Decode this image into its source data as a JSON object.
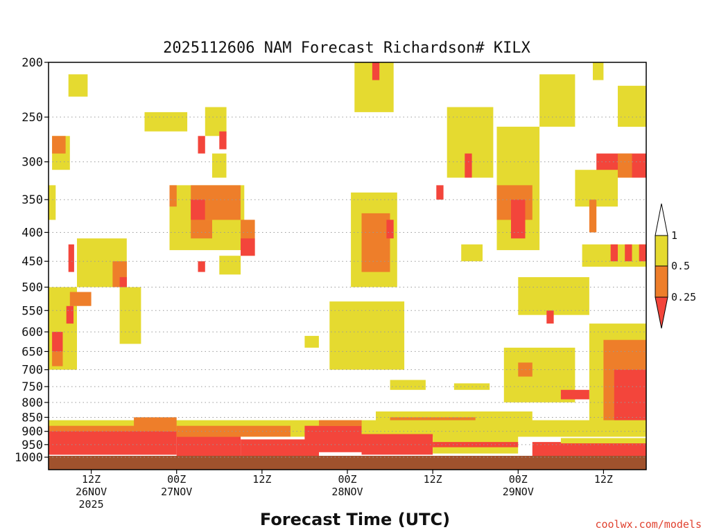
{
  "chart_data": {
    "type": "heatmap",
    "title": "2025112606 NAM Forecast Richardson# KILX",
    "xlabel": "Forecast Time (UTC)",
    "ylabel": "",
    "x_unit": "forecast hour from 2025-11-26 06Z",
    "xlim": [
      0,
      84
    ],
    "ylim": [
      1000,
      200
    ],
    "y_scale": "log-pressure (hPa)",
    "grid": true,
    "y_ticks": [
      200,
      250,
      300,
      350,
      400,
      450,
      500,
      550,
      600,
      650,
      700,
      750,
      800,
      850,
      900,
      950,
      1000
    ],
    "x_ticks": [
      {
        "hour": 6,
        "line1": "12Z",
        "line2": "26NOV",
        "line3": "2025"
      },
      {
        "hour": 18,
        "line1": "00Z",
        "line2": "27NOV",
        "line3": ""
      },
      {
        "hour": 30,
        "line1": "12Z",
        "line2": "",
        "line3": ""
      },
      {
        "hour": 42,
        "line1": "00Z",
        "line2": "28NOV",
        "line3": ""
      },
      {
        "hour": 54,
        "line1": "12Z",
        "line2": "",
        "line3": ""
      },
      {
        "hour": 66,
        "line1": "00Z",
        "line2": "29NOV",
        "line3": ""
      },
      {
        "hour": 78,
        "line1": "12Z",
        "line2": "",
        "line3": ""
      }
    ],
    "colorbar": {
      "levels": [
        {
          "label": "1",
          "color": "#ffffff"
        },
        {
          "label": "0.5",
          "color": "#e5da30"
        },
        {
          "label": "0.25",
          "color": "#ee7e2a"
        },
        {
          "label": "",
          "color": "#f3453b"
        }
      ],
      "placement": "right"
    },
    "categories_legend": {
      "under_0.25": "#f3453b",
      "0.25_to_0.5": "#ee7e2a",
      "0.5_to_1": "#e5da30",
      "surface": "#a0522d"
    },
    "regions": [
      {
        "bin": "0.5-1",
        "h0": 2.8,
        "h1": 5.5,
        "p0": 210,
        "p1": 230
      },
      {
        "bin": "0.5-1",
        "h0": 0.5,
        "h1": 3.0,
        "p0": 270,
        "p1": 310
      },
      {
        "bin": "0.25-0.5",
        "h0": 0.5,
        "h1": 2.4,
        "p0": 270,
        "p1": 290
      },
      {
        "bin": "0.5-1",
        "h0": 0.0,
        "h1": 1.0,
        "p0": 330,
        "p1": 380
      },
      {
        "bin": "0.5-1",
        "h0": 13.5,
        "h1": 19.5,
        "p0": 245,
        "p1": 265
      },
      {
        "bin": "0.5-1",
        "h0": 22.0,
        "h1": 25.0,
        "p0": 240,
        "p1": 270
      },
      {
        "bin": "under_0.25",
        "h0": 21.0,
        "h1": 22.0,
        "p0": 270,
        "p1": 290
      },
      {
        "bin": "under_0.25",
        "h0": 24.0,
        "h1": 25.0,
        "p0": 265,
        "p1": 285
      },
      {
        "bin": "0.5-1",
        "h0": 23.0,
        "h1": 25.0,
        "p0": 290,
        "p1": 320
      },
      {
        "bin": "0.5-1",
        "h0": 17.0,
        "h1": 27.5,
        "p0": 330,
        "p1": 430
      },
      {
        "bin": "0.25-0.5",
        "h0": 17.0,
        "h1": 18.0,
        "p0": 330,
        "p1": 360
      },
      {
        "bin": "0.25-0.5",
        "h0": 20.0,
        "h1": 27.0,
        "p0": 330,
        "p1": 380
      },
      {
        "bin": "0.25-0.5",
        "h0": 20.0,
        "h1": 23.0,
        "p0": 380,
        "p1": 410
      },
      {
        "bin": "under_0.25",
        "h0": 20.0,
        "h1": 22.0,
        "p0": 350,
        "p1": 380
      },
      {
        "bin": "0.25-0.5",
        "h0": 27.0,
        "h1": 29.0,
        "p0": 380,
        "p1": 440
      },
      {
        "bin": "under_0.25",
        "h0": 27.0,
        "h1": 29.0,
        "p0": 410,
        "p1": 440
      },
      {
        "bin": "0.5-1",
        "h0": 24.0,
        "h1": 27.0,
        "p0": 440,
        "p1": 475
      },
      {
        "bin": "under_0.25",
        "h0": 21.0,
        "h1": 22.0,
        "p0": 450,
        "p1": 470
      },
      {
        "bin": "0.5-1",
        "h0": 4.0,
        "h1": 11.0,
        "p0": 410,
        "p1": 500
      },
      {
        "bin": "0.25-0.5",
        "h0": 9.0,
        "h1": 11.0,
        "p0": 450,
        "p1": 500
      },
      {
        "bin": "under_0.25",
        "h0": 10.0,
        "h1": 11.0,
        "p0": 480,
        "p1": 500
      },
      {
        "bin": "0.5-1",
        "h0": 10.0,
        "h1": 13.0,
        "p0": 500,
        "p1": 630
      },
      {
        "bin": "0.5-1",
        "h0": 0.0,
        "h1": 4.0,
        "p0": 500,
        "p1": 700
      },
      {
        "bin": "0.25-0.5",
        "h0": 3.0,
        "h1": 6.0,
        "p0": 510,
        "p1": 540
      },
      {
        "bin": "under_0.25",
        "h0": 2.5,
        "h1": 3.5,
        "p0": 540,
        "p1": 580
      },
      {
        "bin": "under_0.25",
        "h0": 0.5,
        "h1": 2.0,
        "p0": 600,
        "p1": 650
      },
      {
        "bin": "0.25-0.5",
        "h0": 0.5,
        "h1": 2.0,
        "p0": 650,
        "p1": 690
      },
      {
        "bin": "under_0.25",
        "h0": 2.8,
        "h1": 3.6,
        "p0": 420,
        "p1": 470
      },
      {
        "bin": "0.5-1",
        "h0": 43.0,
        "h1": 48.5,
        "p0": 200,
        "p1": 245
      },
      {
        "bin": "under_0.25",
        "h0": 45.5,
        "h1": 46.5,
        "p0": 200,
        "p1": 215
      },
      {
        "bin": "0.5-1",
        "h0": 42.5,
        "h1": 49.0,
        "p0": 340,
        "p1": 500
      },
      {
        "bin": "0.25-0.5",
        "h0": 44.0,
        "h1": 48.0,
        "p0": 370,
        "p1": 470
      },
      {
        "bin": "under_0.25",
        "h0": 47.5,
        "h1": 48.5,
        "p0": 380,
        "p1": 410
      },
      {
        "bin": "0.5-1",
        "h0": 39.5,
        "h1": 50.0,
        "p0": 530,
        "p1": 700
      },
      {
        "bin": "0.5-1",
        "h0": 36.0,
        "h1": 38.0,
        "p0": 610,
        "p1": 640
      },
      {
        "bin": "0.5-1",
        "h0": 56.0,
        "h1": 62.5,
        "p0": 240,
        "p1": 320
      },
      {
        "bin": "under_0.25",
        "h0": 58.5,
        "h1": 59.5,
        "p0": 290,
        "p1": 320
      },
      {
        "bin": "under_0.25",
        "h0": 54.5,
        "h1": 55.5,
        "p0": 330,
        "p1": 350
      },
      {
        "bin": "0.5-1",
        "h0": 63.0,
        "h1": 69.0,
        "p0": 260,
        "p1": 430
      },
      {
        "bin": "0.25-0.5",
        "h0": 63.0,
        "h1": 68.0,
        "p0": 330,
        "p1": 380
      },
      {
        "bin": "under_0.25",
        "h0": 65.0,
        "h1": 67.0,
        "p0": 350,
        "p1": 410
      },
      {
        "bin": "0.5-1",
        "h0": 58.0,
        "h1": 61.0,
        "p0": 420,
        "p1": 450
      },
      {
        "bin": "0.5-1",
        "h0": 69.0,
        "h1": 74.0,
        "p0": 210,
        "p1": 260
      },
      {
        "bin": "0.5-1",
        "h0": 76.5,
        "h1": 78.0,
        "p0": 200,
        "p1": 215
      },
      {
        "bin": "0.5-1",
        "h0": 80.0,
        "h1": 84.0,
        "p0": 220,
        "p1": 260
      },
      {
        "bin": "under_0.25",
        "h0": 77.0,
        "h1": 84.0,
        "p0": 290,
        "p1": 320
      },
      {
        "bin": "0.25-0.5",
        "h0": 80.0,
        "h1": 82.0,
        "p0": 290,
        "p1": 320
      },
      {
        "bin": "0.5-1",
        "h0": 74.0,
        "h1": 80.0,
        "p0": 310,
        "p1": 360
      },
      {
        "bin": "0.25-0.5",
        "h0": 76.0,
        "h1": 77.0,
        "p0": 350,
        "p1": 400
      },
      {
        "bin": "0.5-1",
        "h0": 75.0,
        "h1": 84.0,
        "p0": 420,
        "p1": 460
      },
      {
        "bin": "under_0.25",
        "h0": 79.0,
        "h1": 80.0,
        "p0": 420,
        "p1": 450
      },
      {
        "bin": "under_0.25",
        "h0": 81.0,
        "h1": 82.0,
        "p0": 420,
        "p1": 450
      },
      {
        "bin": "under_0.25",
        "h0": 83.0,
        "h1": 84.0,
        "p0": 420,
        "p1": 450
      },
      {
        "bin": "0.5-1",
        "h0": 66.0,
        "h1": 76.0,
        "p0": 480,
        "p1": 560
      },
      {
        "bin": "under_0.25",
        "h0": 70.0,
        "h1": 71.0,
        "p0": 550,
        "p1": 580
      },
      {
        "bin": "0.5-1",
        "h0": 64.0,
        "h1": 74.0,
        "p0": 640,
        "p1": 800
      },
      {
        "bin": "0.25-0.5",
        "h0": 66.0,
        "h1": 68.0,
        "p0": 680,
        "p1": 720
      },
      {
        "bin": "under_0.25",
        "h0": 72.0,
        "h1": 76.0,
        "p0": 760,
        "p1": 790
      },
      {
        "bin": "0.5-1",
        "h0": 76.0,
        "h1": 84.0,
        "p0": 580,
        "p1": 900
      },
      {
        "bin": "0.25-0.5",
        "h0": 78.0,
        "h1": 84.0,
        "p0": 620,
        "p1": 900
      },
      {
        "bin": "under_0.25",
        "h0": 79.5,
        "h1": 84.0,
        "p0": 700,
        "p1": 900
      },
      {
        "bin": "0.5-1",
        "h0": 48.0,
        "h1": 53.0,
        "p0": 730,
        "p1": 760
      },
      {
        "bin": "0.5-1",
        "h0": 57.0,
        "h1": 62.0,
        "p0": 740,
        "p1": 760
      },
      {
        "bin": "0.5-1",
        "h0": 46.0,
        "h1": 68.0,
        "p0": 830,
        "p1": 880
      },
      {
        "bin": "0.25-0.5",
        "h0": 48.0,
        "h1": 60.0,
        "p0": 850,
        "p1": 900
      },
      {
        "bin": "0.5-1",
        "h0": 0.0,
        "h1": 84.0,
        "p0": 860,
        "p1": 920
      },
      {
        "bin": "0.25-0.5",
        "h0": 0.0,
        "h1": 16.0,
        "p0": 880,
        "p1": 960
      },
      {
        "bin": "0.25-0.5",
        "h0": 12.0,
        "h1": 18.0,
        "p0": 850,
        "p1": 900
      },
      {
        "bin": "under_0.25",
        "h0": 0.0,
        "h1": 18.0,
        "p0": 900,
        "p1": 990
      },
      {
        "bin": "under_0.25",
        "h0": 18.0,
        "h1": 27.0,
        "p0": 920,
        "p1": 995
      },
      {
        "bin": "0.25-0.5",
        "h0": 18.0,
        "h1": 34.0,
        "p0": 880,
        "p1": 920
      },
      {
        "bin": "under_0.25",
        "h0": 27.0,
        "h1": 38.0,
        "p0": 930,
        "p1": 995
      },
      {
        "bin": "under_0.25",
        "h0": 36.0,
        "h1": 44.0,
        "p0": 880,
        "p1": 980
      },
      {
        "bin": "0.25-0.5",
        "h0": 38.0,
        "h1": 44.0,
        "p0": 860,
        "p1": 880
      },
      {
        "bin": "under_0.25",
        "h0": 44.0,
        "h1": 54.0,
        "p0": 910,
        "p1": 990
      },
      {
        "bin": "0.5-1",
        "h0": 54.0,
        "h1": 66.0,
        "p0": 920,
        "p1": 985
      },
      {
        "bin": "under_0.25",
        "h0": 54.0,
        "h1": 66.0,
        "p0": 940,
        "p1": 960
      },
      {
        "bin": "under_0.25",
        "h0": 68.0,
        "h1": 84.0,
        "p0": 940,
        "p1": 995
      },
      {
        "bin": "0.5-1",
        "h0": 72.0,
        "h1": 84.0,
        "p0": 925,
        "p1": 945
      },
      {
        "bin": "surface",
        "h0": 0.0,
        "h1": 84.0,
        "p0": 995,
        "p1": 1010
      }
    ]
  },
  "credit": "coolwx.com/models"
}
